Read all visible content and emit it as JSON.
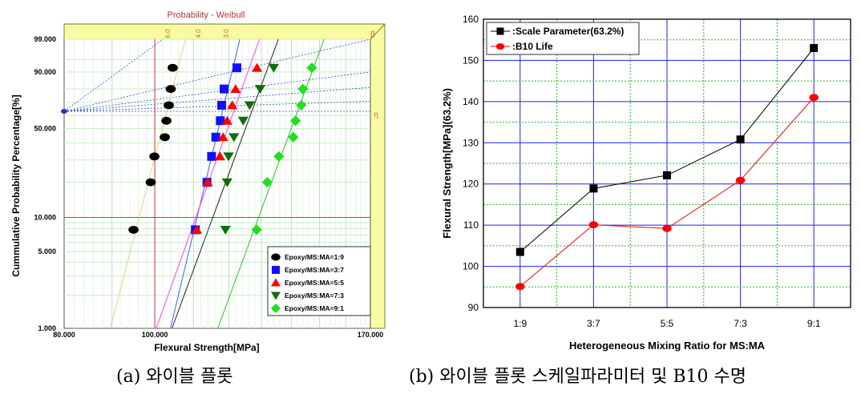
{
  "captions": {
    "left": "(a) 와이블 플롯",
    "right": "(b) 와이블 플롯 스케일파라미터 및 B10 수명"
  },
  "chart_data": [
    {
      "type": "scatter",
      "subtype": "weibull-probability-plot",
      "title": "Probability - Weibull",
      "xlabel": "Flexural Strength[MPa]",
      "ylabel": "Cummulative Probability Percentage[%]",
      "xlim": [
        80,
        170
      ],
      "x_scale": "log",
      "y_scale": "weibull",
      "x_ticks": [
        "80.000",
        "100.000",
        "170.000"
      ],
      "y_ticks": [
        "1.000",
        "5.000",
        "10.000",
        "50.000",
        "90.000",
        "99.000"
      ],
      "eta_axis_label": "η",
      "beta_axis_label": "β",
      "beta_ticks": [
        "6.0",
        "4.0",
        "3.0"
      ],
      "reference_lines": {
        "x": 100,
        "y": 10,
        "color": "#e0303a"
      },
      "grid": true,
      "legend_position": "bottom-right",
      "background": "#ffffff",
      "frame_color": "#fafaa0",
      "series": [
        {
          "name": "Epoxy/MS:MA=1:9",
          "marker": "circle",
          "color": "#000000",
          "line_color": "#e6d27a",
          "x": [
            94.9,
            99.0,
            99.9,
            102.5,
            102.9,
            103.5,
            104.0,
            104.5
          ],
          "y": [
            7.8,
            19.9,
            31.9,
            43.9,
            55.9,
            67.9,
            79.9,
            91.9
          ]
        },
        {
          "name": "Epoxy/MS:MA=3:7",
          "marker": "square",
          "color": "#1010ff",
          "line_color": "#4060ff",
          "x": [
            110.5,
            113.7,
            115.0,
            116.2,
            117.5,
            117.9,
            118.6,
            122.4
          ],
          "y": [
            7.8,
            19.9,
            31.9,
            43.9,
            55.9,
            67.9,
            79.9,
            91.9
          ]
        },
        {
          "name": "Epoxy/MS:MA=5:5",
          "marker": "triangle-up",
          "color": "#ff0000",
          "line_color": "#ff40ff",
          "x": [
            110.9,
            113.9,
            117.4,
            118.3,
            119.5,
            121.0,
            122.0,
            128.6
          ],
          "y": [
            7.8,
            19.9,
            31.9,
            43.9,
            55.9,
            67.9,
            79.9,
            91.9
          ]
        },
        {
          "name": "Epoxy/MS:MA=7:3",
          "marker": "triangle-down",
          "color": "#0e6e0e",
          "line_color": "#222222",
          "x": [
            119.0,
            119.5,
            119.9,
            121.5,
            124.3,
            126.3,
            129.6,
            134.0
          ],
          "y": [
            7.8,
            19.9,
            31.9,
            43.9,
            55.9,
            67.9,
            79.9,
            91.9
          ]
        },
        {
          "name": "Epoxy/MS:MA=9:1",
          "marker": "diamond",
          "color": "#20e020",
          "line_color": "#30c030",
          "x": [
            128.5,
            131.9,
            135.7,
            140.6,
            141.4,
            143.4,
            144.0,
            147.2
          ],
          "y": [
            7.8,
            19.9,
            31.9,
            43.9,
            55.9,
            67.9,
            79.9,
            91.9
          ]
        }
      ]
    },
    {
      "type": "line",
      "xlabel": "Heterogeneous Mixing Ratio for MS:MA",
      "ylabel": "Flexural Strength[MPa](63.2%)",
      "categories": [
        "1:9",
        "3:7",
        "5:5",
        "7:3",
        "9:1"
      ],
      "ylim": [
        90,
        160
      ],
      "y_ticks": [
        90,
        100,
        110,
        120,
        130,
        140,
        150,
        160
      ],
      "grid": true,
      "legend_position": "top-left",
      "series": [
        {
          "name": ":Scale Parameter(63.2%)",
          "marker": "square",
          "color": "#000000",
          "values": [
            103.5,
            118.9,
            122.1,
            130.8,
            153.0
          ]
        },
        {
          "name": ":B10 Life",
          "marker": "circle",
          "color": "#ff0000",
          "values": [
            95.1,
            110.1,
            109.2,
            120.9,
            141.0
          ]
        }
      ]
    }
  ]
}
